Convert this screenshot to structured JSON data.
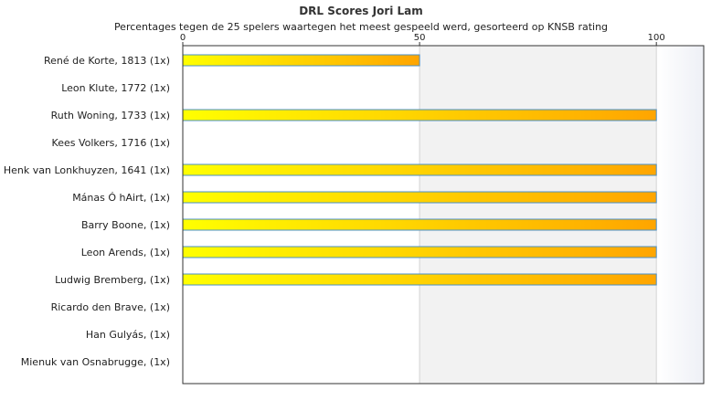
{
  "chart_data": {
    "type": "bar",
    "orientation": "horizontal",
    "title": "DRL Scores Jori Lam",
    "subtitle": "Percentages tegen de 25 spelers waartegen het meest gespeeld werd, gesorteerd op KNSB rating",
    "categories": [
      "René de Korte, 1813 (1x)",
      "Leon Klute, 1772 (1x)",
      "Ruth Woning, 1733 (1x)",
      "Kees Volkers, 1716 (1x)",
      "Henk van Lonkhuyzen, 1641 (1x)",
      "Mánas Ó hAirt,  (1x)",
      "Barry Boone,  (1x)",
      "Leon Arends,  (1x)",
      "Ludwig Bremberg,  (1x)",
      "Ricardo den Brave,  (1x)",
      "Han Gulyás,  (1x)",
      "Mienuk van Osnabrugge,  (1x)"
    ],
    "values": [
      50,
      0,
      100,
      0,
      100,
      100,
      100,
      100,
      100,
      0,
      0,
      0
    ],
    "xlim": [
      0,
      110
    ],
    "xticks": [
      "0",
      "50",
      "100"
    ],
    "xtick_values": [
      0,
      50,
      100
    ],
    "axis_position": "top",
    "bar_color_start": "#ffff00",
    "bar_color_end": "#ffa500",
    "bar_border_color": "#4a90c8",
    "band_color": "#f2f2f2"
  }
}
